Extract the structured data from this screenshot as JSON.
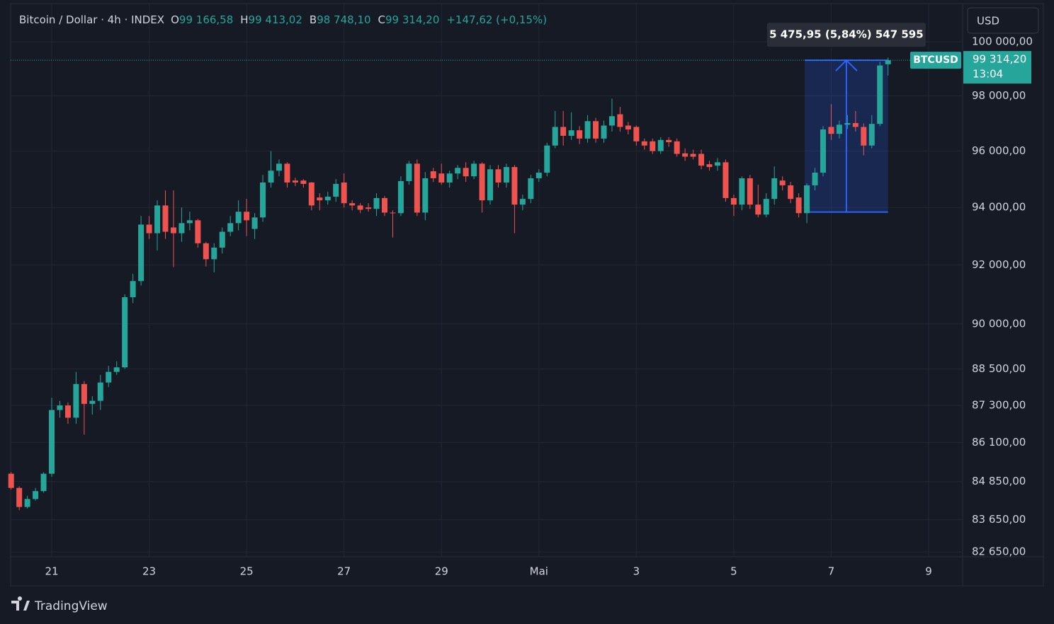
{
  "header": {
    "symbol": "Bitcoin / Dollar · 4h · INDEX",
    "fields": [
      {
        "key": "O",
        "value": "99 166,58"
      },
      {
        "key": "H",
        "value": "99 413,02"
      },
      {
        "key": "B",
        "value": "98 748,10"
      },
      {
        "key": "C",
        "value": "99 314,20"
      }
    ],
    "change": "+147,62 (+0,15%)"
  },
  "currency": "USD",
  "brand": "TradingView",
  "price_tag": {
    "symbol": "BTCUSD",
    "price": "99 314,20",
    "countdown": "13:04"
  },
  "chart_data": {
    "type": "candlestick",
    "up_color": "#26a69a",
    "down_color": "#ef5350",
    "log_scale": true,
    "grid": true,
    "categories": [
      null,
      null,
      null,
      null,
      null,
      "21",
      null,
      null,
      null,
      null,
      null,
      null,
      null,
      null,
      null,
      null,
      null,
      "23",
      null,
      null,
      null,
      null,
      null,
      null,
      null,
      null,
      null,
      null,
      null,
      "25",
      null,
      null,
      null,
      null,
      null,
      null,
      null,
      null,
      null,
      null,
      null,
      "27",
      null,
      null,
      null,
      null,
      null,
      null,
      null,
      null,
      null,
      null,
      null,
      "29",
      null,
      null,
      null,
      null,
      null,
      null,
      null,
      null,
      null,
      null,
      null,
      "Mai",
      null,
      null,
      null,
      null,
      null,
      null,
      null,
      null,
      null,
      null,
      null,
      "3",
      null,
      null,
      null,
      null,
      null,
      null,
      null,
      null,
      null,
      null,
      null,
      "5",
      null,
      null,
      null,
      null,
      null,
      null,
      null,
      null,
      null,
      null,
      null,
      "7",
      null,
      null,
      null,
      null,
      null,
      null,
      null,
      null,
      null,
      null,
      null,
      "9",
      null,
      null,
      null
    ],
    "open": [
      85100,
      84650,
      84050,
      84300,
      84550,
      85100,
      87150,
      87300,
      86900,
      88000,
      87350,
      87450,
      88050,
      88400,
      88550,
      90900,
      91450,
      93400,
      93100,
      94070,
      93300,
      93100,
      93450,
      93550,
      92750,
      92200,
      92600,
      93150,
      93450,
      93850,
      93250,
      93650,
      94880,
      95300,
      95550,
      94950,
      94950,
      94880,
      94350,
      94250,
      94380,
      94880,
      94150,
      94070,
      94000,
      93950,
      94330,
      93820,
      93800,
      94930,
      95550,
      93820,
      95280,
      95200,
      94880,
      95200,
      95400,
      95100,
      95550,
      94250,
      95350,
      94880,
      95430,
      94100,
      94300,
      95030,
      95230,
      96200,
      96870,
      96550,
      96750,
      96450,
      97080,
      96450,
      96920,
      97330,
      96920,
      96870,
      96350,
      96350,
      96000,
      96400,
      96350,
      95920,
      95900,
      95900,
      95530,
      95480,
      95600,
      94330,
      94100,
      95030,
      94100,
      93750,
      94300,
      94950,
      94780,
      94350,
      93800,
      94780,
      95230,
      96870,
      96620,
      96950,
      97010,
      96870,
      96200,
      96980,
      99166.58,
      null,
      null,
      null,
      null,
      null,
      null,
      null,
      null
    ],
    "high": [
      85150,
      84700,
      84400,
      84650,
      85150,
      87550,
      87450,
      87400,
      88400,
      88100,
      87600,
      88300,
      88600,
      88750,
      91000,
      91700,
      93700,
      93700,
      94250,
      94600,
      94600,
      94000,
      93850,
      93600,
      92800,
      92750,
      93300,
      93700,
      94250,
      94300,
      93800,
      95150,
      96000,
      95700,
      95600,
      95050,
      95000,
      94900,
      94500,
      94550,
      95000,
      95200,
      94250,
      94150,
      94150,
      94500,
      94400,
      93900,
      95100,
      95650,
      95700,
      95250,
      95400,
      95550,
      95300,
      95500,
      95600,
      95650,
      95600,
      95500,
      95500,
      95550,
      95500,
      94450,
      95150,
      95350,
      96300,
      97450,
      97450,
      97400,
      96900,
      97300,
      97200,
      97100,
      97900,
      97600,
      97050,
      96920,
      96450,
      96450,
      96500,
      96500,
      96450,
      96100,
      96050,
      96050,
      95650,
      95750,
      95700,
      94450,
      95100,
      95150,
      94800,
      94500,
      95450,
      95100,
      94900,
      94500,
      94850,
      95400,
      96900,
      97700,
      97100,
      97300,
      97450,
      97000,
      97300,
      99250,
      99413.02,
      null,
      null,
      null,
      null,
      null,
      null,
      null,
      null
    ],
    "low": [
      84600,
      83950,
      84000,
      84250,
      84500,
      85000,
      86900,
      86700,
      86700,
      86350,
      87000,
      87150,
      87900,
      88300,
      88500,
      90700,
      91300,
      92900,
      92500,
      92900,
      91930,
      92800,
      93200,
      92600,
      91950,
      91750,
      92400,
      93000,
      93200,
      93000,
      92900,
      93500,
      94700,
      95100,
      94700,
      94750,
      94700,
      93900,
      93900,
      94100,
      94200,
      94000,
      93900,
      93800,
      93850,
      93700,
      93700,
      92950,
      93700,
      94800,
      93700,
      93550,
      94900,
      94800,
      94700,
      95000,
      94900,
      95000,
      93820,
      94100,
      94700,
      94700,
      93100,
      93900,
      94150,
      94900,
      95100,
      96100,
      96200,
      96400,
      96250,
      96300,
      96300,
      96300,
      96700,
      96700,
      96600,
      96200,
      96050,
      95900,
      95900,
      96150,
      95800,
      95650,
      95700,
      95350,
      95300,
      95300,
      94200,
      93700,
      93900,
      93950,
      93650,
      93650,
      94100,
      94600,
      94150,
      93650,
      93450,
      94600,
      95100,
      96400,
      96450,
      96800,
      96700,
      95850,
      96100,
      96900,
      98748.1,
      null,
      null,
      null,
      null,
      null,
      null,
      null,
      null
    ],
    "close": [
      84650,
      84050,
      84300,
      84550,
      85100,
      87150,
      87300,
      86900,
      88000,
      87350,
      87450,
      88050,
      88400,
      88550,
      90900,
      91450,
      93400,
      93100,
      94070,
      93150,
      93100,
      93450,
      93550,
      92750,
      92200,
      92600,
      93150,
      93450,
      93850,
      93550,
      93650,
      94880,
      95300,
      95550,
      94880,
      94880,
      94830,
      94070,
      94250,
      94380,
      94830,
      94150,
      94070,
      93920,
      93950,
      94330,
      93820,
      93800,
      94930,
      95550,
      93820,
      95030,
      95030,
      94880,
      95200,
      95400,
      95100,
      95550,
      94250,
      95350,
      94880,
      95430,
      94100,
      94300,
      95030,
      95230,
      96200,
      96870,
      96550,
      96750,
      96450,
      97080,
      96450,
      96920,
      97260,
      96870,
      96780,
      96350,
      96200,
      96000,
      96400,
      96320,
      95900,
      95800,
      95800,
      95480,
      95430,
      95600,
      94330,
      94100,
      95030,
      94100,
      93750,
      94300,
      95030,
      94780,
      94300,
      93800,
      94780,
      95230,
      96780,
      96620,
      96950,
      97010,
      96870,
      96200,
      96980,
      99120,
      99314.2,
      null,
      null,
      null,
      null,
      null,
      null,
      null,
      null
    ],
    "ylim": [
      82500,
      101440
    ],
    "yticks": [
      {
        "value": 100000,
        "label": "100 000,00"
      },
      {
        "value": 98000,
        "label": "98 000,00"
      },
      {
        "value": 96000,
        "label": "96 000,00"
      },
      {
        "value": 94000,
        "label": "94 000,00"
      },
      {
        "value": 92000,
        "label": "92 000,00"
      },
      {
        "value": 90000,
        "label": "90 000,00"
      },
      {
        "value": 88500,
        "label": "88 500,00"
      },
      {
        "value": 87300,
        "label": "87 300,00"
      },
      {
        "value": 86100,
        "label": "86 100,00"
      },
      {
        "value": 84850,
        "label": "84 850,00"
      },
      {
        "value": 83650,
        "label": "83 650,00"
      },
      {
        "value": 82650,
        "label": "82 650,00"
      }
    ],
    "measure": {
      "label": "5 475,95 (5,84%) 547 595",
      "from": 93838.25,
      "to": 99314.2
    }
  }
}
